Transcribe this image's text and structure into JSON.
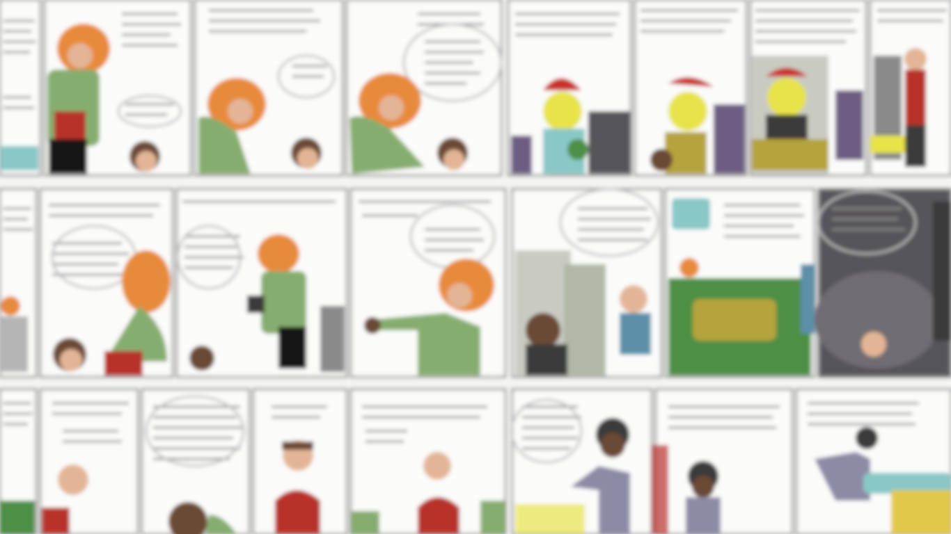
{
  "scene": {
    "description_visible_text": "",
    "palette": {
      "page": "#f4f4f2",
      "panel": "#fbfbfa",
      "ink": "#8a8a8a",
      "ink_dark": "#3b3b3b",
      "hair_orange": "#e88a3a",
      "shirt_green": "#86ad6f",
      "shirt_red": "#b8312c",
      "pants_black": "#151515",
      "skin": "#e3b596",
      "skin_dark": "#6b4a36",
      "hat_red": "#c9302c",
      "hat_green": "#4e8f45",
      "yellow_face": "#e7e34a",
      "purple": "#6d5d82",
      "gray_dark": "#57555a",
      "teal": "#89c8c6",
      "olive": "#b5a33c",
      "stone": "#c9cbc2"
    }
  }
}
